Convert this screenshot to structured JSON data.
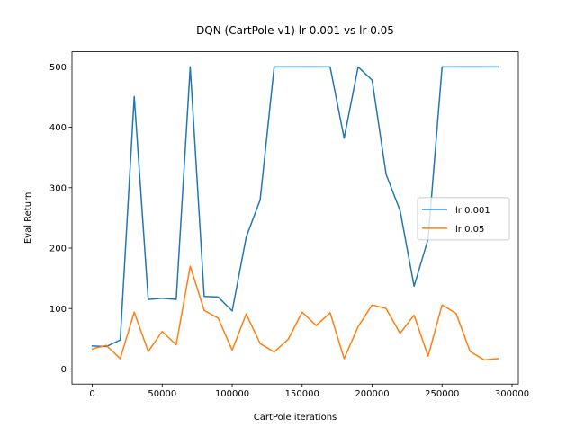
{
  "chart_data": {
    "type": "line",
    "title": "DQN (CartPole-v1) lr 0.001 vs lr 0.05",
    "xlabel": "CartPole iterations",
    "ylabel": "Eval Return",
    "xlim": [
      -14500,
      304500
    ],
    "ylim": [
      -25,
      525
    ],
    "xticks": [
      0,
      50000,
      100000,
      150000,
      200000,
      250000,
      300000
    ],
    "xtick_labels": [
      "0",
      "50000",
      "100000",
      "150000",
      "200000",
      "250000",
      "300000"
    ],
    "yticks": [
      0,
      100,
      200,
      300,
      400,
      500
    ],
    "ytick_labels": [
      "0",
      "100",
      "200",
      "300",
      "400",
      "500"
    ],
    "grid": false,
    "legend_position": "center-right",
    "x": [
      0,
      10000,
      20000,
      30000,
      40000,
      50000,
      60000,
      70000,
      80000,
      90000,
      100000,
      110000,
      120000,
      130000,
      140000,
      150000,
      160000,
      170000,
      180000,
      190000,
      200000,
      210000,
      220000,
      230000,
      240000,
      250000,
      260000,
      270000,
      280000,
      290000
    ],
    "series": [
      {
        "name": "lr 0.001",
        "color": "#1f77b4",
        "values": [
          38,
          37,
          48,
          451,
          115,
          117,
          115,
          500,
          120,
          119,
          96,
          218,
          280,
          500,
          500,
          500,
          500,
          500,
          382,
          500,
          478,
          322,
          262,
          137,
          215,
          500,
          500,
          500,
          500,
          500
        ]
      },
      {
        "name": "lr 0.05",
        "color": "#ff7f0e",
        "values": [
          33,
          39,
          17,
          94,
          29,
          62,
          40,
          170,
          97,
          84,
          31,
          91,
          42,
          28,
          49,
          94,
          72,
          93,
          17,
          70,
          106,
          100,
          59,
          89,
          21,
          106,
          92,
          29,
          15,
          17
        ]
      }
    ]
  }
}
